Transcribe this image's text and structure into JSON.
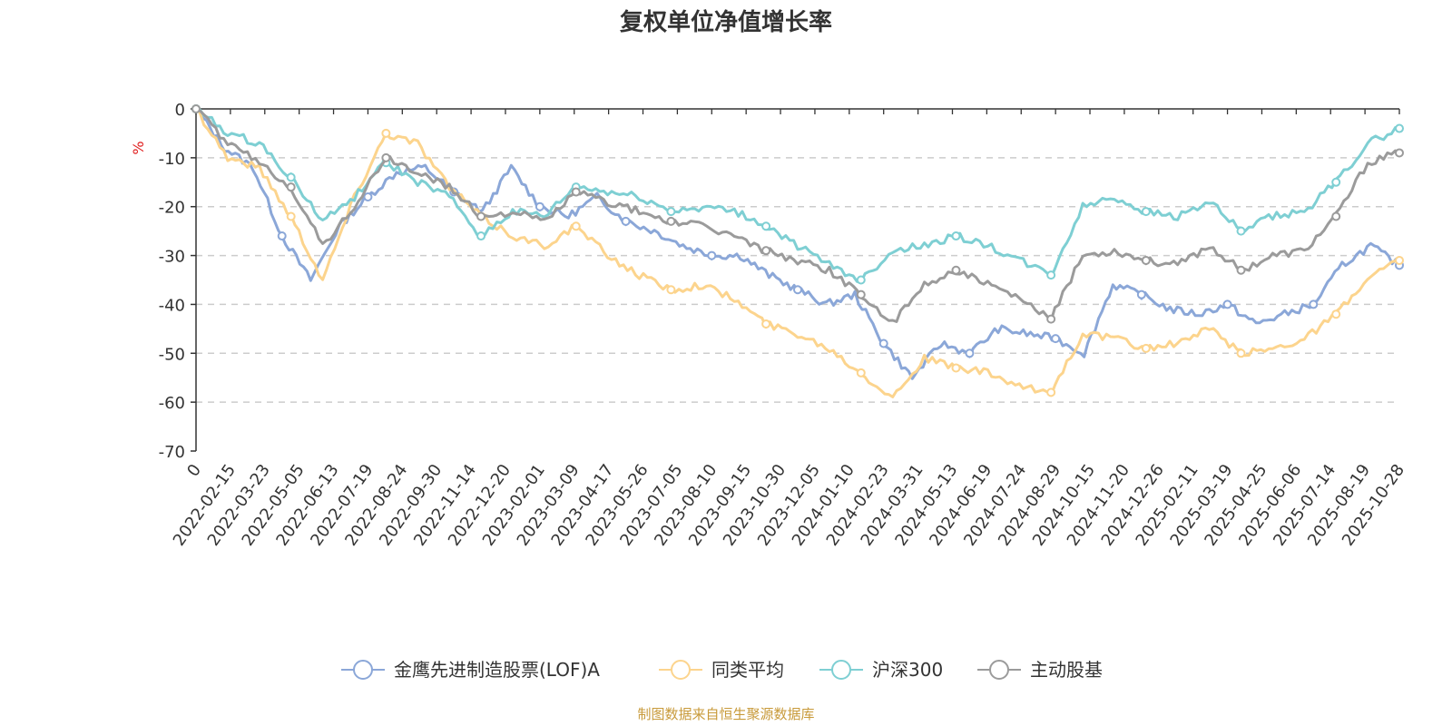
{
  "chart_data": {
    "type": "line",
    "title": "复权单位净值增长率",
    "ylabel": "%",
    "ylim": [
      -70,
      0
    ],
    "yticks": [
      0,
      -10,
      -20,
      -30,
      -40,
      -50,
      -60,
      -70
    ],
    "xticks": [
      "0",
      "2022-02-15",
      "2022-03-23",
      "2022-05-05",
      "2022-06-13",
      "2022-07-19",
      "2022-08-24",
      "2022-09-30",
      "2022-11-14",
      "2022-12-20",
      "2023-02-01",
      "2023-03-09",
      "2023-04-17",
      "2023-05-26",
      "2023-07-05",
      "2023-08-10",
      "2023-09-15",
      "2023-10-30",
      "2023-12-05",
      "2024-01-10",
      "2024-02-23",
      "2024-03-31",
      "2024-05-13",
      "2024-06-19",
      "2024-07-24",
      "2024-08-29",
      "2024-10-15",
      "2024-11-20",
      "2024-12-26",
      "2025-02-11",
      "2025-03-19",
      "2025-04-25",
      "2025-06-06",
      "2025-07-14",
      "2025-08-19",
      "2025-10-28"
    ],
    "grid": "horizontal-dashed",
    "legend_position": "bottom-center",
    "series": [
      {
        "name": "金鹰先进制造股票(LOF)A",
        "color": "#8ba7d8",
        "values": [
          0,
          -8,
          -12,
          -26,
          -35,
          -24,
          -18,
          -13,
          -12,
          -17,
          -21,
          -12,
          -20,
          -22,
          -18,
          -23,
          -25,
          -28,
          -30,
          -30,
          -34,
          -37,
          -40,
          -38,
          -48,
          -55,
          -48,
          -50,
          -45,
          -46,
          -47,
          -50,
          -36,
          -38,
          -41,
          -42,
          -40,
          -44,
          -42,
          -40,
          -32,
          -28,
          -32
        ]
      },
      {
        "name": "同类平均",
        "color": "#fcd48d",
        "values": [
          0,
          -10,
          -12,
          -22,
          -35,
          -18,
          -5,
          -7,
          -16,
          -22,
          -26,
          -28,
          -24,
          -30,
          -34,
          -37,
          -36,
          -39,
          -44,
          -46,
          -49,
          -54,
          -59,
          -51,
          -53,
          -54,
          -57,
          -58,
          -46,
          -47,
          -49,
          -48,
          -45,
          -50,
          -49,
          -47,
          -42,
          -35,
          -31
        ]
      },
      {
        "name": "沪深300",
        "color": "#7ecfd3",
        "values": [
          0,
          -5,
          -7,
          -14,
          -23,
          -18,
          -11,
          -15,
          -18,
          -26,
          -21,
          -22,
          -16,
          -17,
          -18,
          -21,
          -20,
          -21,
          -24,
          -28,
          -32,
          -35,
          -29,
          -28,
          -26,
          -28,
          -31,
          -34,
          -20,
          -18,
          -21,
          -22,
          -19,
          -25,
          -22,
          -21,
          -15,
          -7,
          -4
        ]
      },
      {
        "name": "主动股基",
        "color": "#9b9b9b",
        "values": [
          0,
          -7,
          -11,
          -16,
          -28,
          -20,
          -10,
          -13,
          -16,
          -22,
          -21,
          -23,
          -17,
          -19,
          -21,
          -23,
          -24,
          -26,
          -29,
          -31,
          -33,
          -38,
          -44,
          -36,
          -33,
          -36,
          -39,
          -43,
          -30,
          -29,
          -31,
          -32,
          -28,
          -33,
          -30,
          -29,
          -22,
          -11,
          -9
        ]
      }
    ]
  },
  "source": {
    "text": "制图数据来自恒生聚源数据库"
  }
}
